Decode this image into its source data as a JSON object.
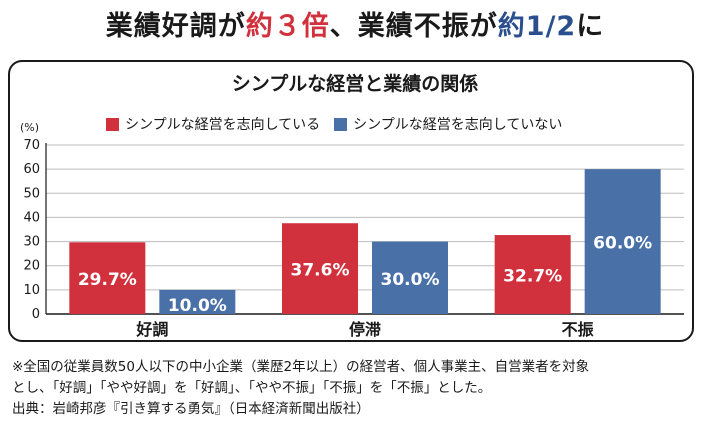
{
  "headline": {
    "part1": "業績好調が",
    "part2": "約３倍",
    "part3": "、業績不振が",
    "part4": "約1/2",
    "part5": "に"
  },
  "chart_data": {
    "type": "bar",
    "title": "シンプルな経営と業績の関係",
    "unit_label": "(%)",
    "categories": [
      "好調",
      "停滞",
      "不振"
    ],
    "series": [
      {
        "name": "シンプルな経営を志向している",
        "color": "#d0313c",
        "values": [
          29.7,
          37.6,
          32.7
        ],
        "labels": [
          "29.7%",
          "37.6%",
          "32.7%"
        ]
      },
      {
        "name": "シンプルな経営を志向していない",
        "color": "#4a70a8",
        "values": [
          10.0,
          30.0,
          60.0
        ],
        "labels": [
          "10.0%",
          "30.0%",
          "60.0%"
        ]
      }
    ],
    "yticks": [
      "0",
      "10",
      "20",
      "30",
      "40",
      "50",
      "60",
      "70"
    ],
    "ylim": [
      0,
      70
    ],
    "grid": true,
    "legend_position": "top-left"
  },
  "footnote": {
    "line1": "※全国の従業員数50人以下の中小企業（業歴2年以上）の経営者、個人事業主、自営業者を対象",
    "line2": "とし、「好調」「やや好調」を「好調」、「やや不振」「不振」を「不振」とした。",
    "line3": "出典：岩崎邦彦『引き算する勇気』（日本経済新聞出版社）"
  }
}
